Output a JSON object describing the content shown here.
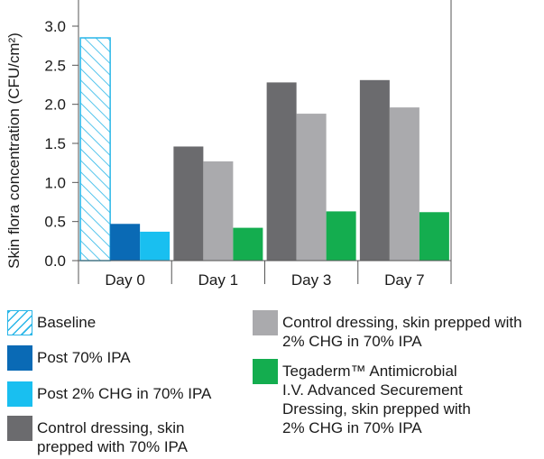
{
  "chart_data": {
    "type": "bar",
    "ylabel": "Skin flora concentration (CFU/cm²)",
    "xlabel": "",
    "ylim": [
      0,
      3.0
    ],
    "yticks": [
      "0.0",
      "0.5",
      "1.0",
      "1.5",
      "2.0",
      "2.5",
      "3.0"
    ],
    "categories": [
      "Day 0",
      "Day 1",
      "Day 3",
      "Day 7"
    ],
    "series": [
      {
        "name": "Baseline",
        "color": "#29b6e8",
        "pattern": "hatch",
        "values": [
          2.85,
          null,
          null,
          null
        ]
      },
      {
        "name": "Post 70% IPA",
        "color": "#0a6ab5",
        "values": [
          0.47,
          null,
          null,
          null
        ]
      },
      {
        "name": "Post 2% CHG in 70% IPA",
        "color": "#19bff0",
        "values": [
          0.37,
          null,
          null,
          null
        ]
      },
      {
        "name": "Control dressing, skin\nprepped with 70% IPA",
        "color": "#6b6b6e",
        "values": [
          null,
          1.46,
          2.28,
          2.31
        ]
      },
      {
        "name": "Control dressing, skin prepped with\n2% CHG in 70% IPA",
        "color": "#aaaaad",
        "values": [
          null,
          1.27,
          1.88,
          1.96
        ]
      },
      {
        "name": "Tegaderm™ Antimicrobial\nI.V. Advanced Securement\nDressing, skin prepped with\n2% CHG in 70% IPA",
        "color": "#14ad4f",
        "values": [
          null,
          0.42,
          0.63,
          0.62
        ]
      }
    ],
    "grid": false,
    "legend_position": "bottom"
  }
}
